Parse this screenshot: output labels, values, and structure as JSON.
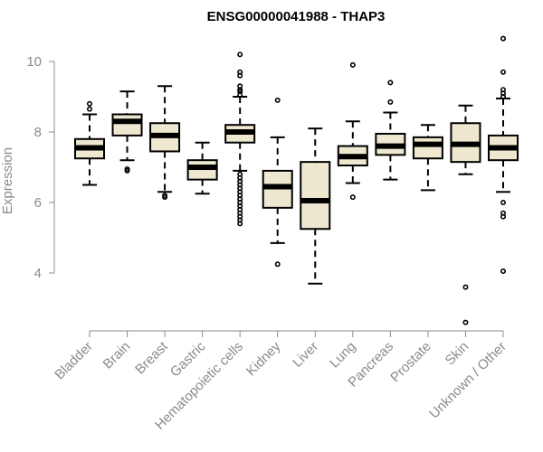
{
  "chart_data": {
    "type": "boxplot",
    "title": "ENSG00000041988 - THAP3",
    "xlabel": "",
    "ylabel": "Expression",
    "ylim": [
      2.5,
      10.9
    ],
    "yticks": [
      4,
      6,
      8,
      10
    ],
    "grid": false,
    "colors": {
      "box_fill": "#efe8d0",
      "box_stroke": "#000000",
      "axis": "#8a8a8a",
      "title": "#000000"
    },
    "categories": [
      "Bladder",
      "Brain",
      "Breast",
      "Gastric",
      "Hematopoietic cells",
      "Kidney",
      "Liver",
      "Lung",
      "Pancreas",
      "Prostate",
      "Skin",
      "Unknown / Other"
    ],
    "boxes": [
      {
        "category": "Bladder",
        "whisker_low": 6.5,
        "q1": 7.25,
        "median": 7.55,
        "q3": 7.8,
        "whisker_high": 8.5,
        "outliers": [
          8.65,
          8.8
        ]
      },
      {
        "category": "Brain",
        "whisker_low": 7.2,
        "q1": 7.9,
        "median": 8.3,
        "q3": 8.5,
        "whisker_high": 9.15,
        "outliers": [
          6.9,
          6.95
        ]
      },
      {
        "category": "Breast",
        "whisker_low": 6.3,
        "q1": 7.45,
        "median": 7.9,
        "q3": 8.25,
        "whisker_high": 9.3,
        "outliers": [
          6.15,
          6.2
        ]
      },
      {
        "category": "Gastric",
        "whisker_low": 6.25,
        "q1": 6.65,
        "median": 7.0,
        "q3": 7.2,
        "whisker_high": 7.7,
        "outliers": []
      },
      {
        "category": "Hematopoietic cells",
        "whisker_low": 6.9,
        "q1": 7.7,
        "median": 8.0,
        "q3": 8.2,
        "whisker_high": 9.0,
        "outliers": [
          5.4,
          5.5,
          5.6,
          5.7,
          5.8,
          5.9,
          6.0,
          6.1,
          6.2,
          6.3,
          6.4,
          6.5,
          6.6,
          6.7,
          6.8,
          9.05,
          9.15,
          9.2,
          9.3,
          9.6,
          9.7,
          10.2
        ]
      },
      {
        "category": "Kidney",
        "whisker_low": 4.85,
        "q1": 5.85,
        "median": 6.45,
        "q3": 6.9,
        "whisker_high": 7.85,
        "outliers": [
          4.25,
          8.9
        ]
      },
      {
        "category": "Liver",
        "whisker_low": 3.7,
        "q1": 5.25,
        "median": 6.05,
        "q3": 7.15,
        "whisker_high": 8.1,
        "outliers": []
      },
      {
        "category": "Lung",
        "whisker_low": 6.55,
        "q1": 7.05,
        "median": 7.3,
        "q3": 7.6,
        "whisker_high": 8.3,
        "outliers": [
          6.15,
          9.9
        ]
      },
      {
        "category": "Pancreas",
        "whisker_low": 6.65,
        "q1": 7.35,
        "median": 7.6,
        "q3": 7.95,
        "whisker_high": 8.55,
        "outliers": [
          8.85,
          9.4
        ]
      },
      {
        "category": "Prostate",
        "whisker_low": 6.35,
        "q1": 7.25,
        "median": 7.65,
        "q3": 7.85,
        "whisker_high": 8.2,
        "outliers": []
      },
      {
        "category": "Skin",
        "whisker_low": 6.8,
        "q1": 7.15,
        "median": 7.65,
        "q3": 8.25,
        "whisker_high": 8.75,
        "outliers": [
          2.6,
          3.6
        ]
      },
      {
        "category": "Unknown / Other",
        "whisker_low": 6.3,
        "q1": 7.2,
        "median": 7.55,
        "q3": 7.9,
        "whisker_high": 8.95,
        "outliers": [
          4.05,
          5.6,
          5.7,
          6.0,
          9.0,
          9.1,
          9.2,
          9.7,
          10.65
        ]
      }
    ]
  }
}
